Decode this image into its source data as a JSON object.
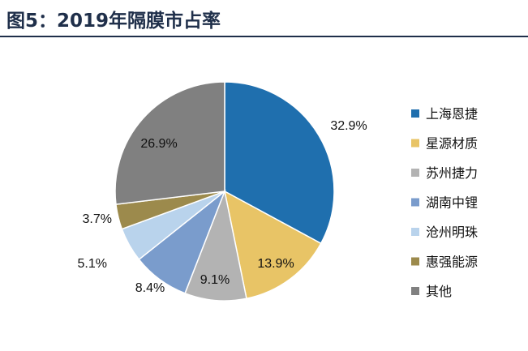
{
  "header": {
    "title": "图5：2019年隔膜市占率"
  },
  "chart_data": {
    "type": "pie",
    "title": "图5：2019年隔膜市占率",
    "legend_position": "right",
    "slices": [
      {
        "label": "上海恩捷",
        "value": 32.9,
        "value_label": "32.9%",
        "color": "#1f6fae"
      },
      {
        "label": "星源材质",
        "value": 13.9,
        "value_label": "13.9%",
        "color": "#e8c466"
      },
      {
        "label": "苏州捷力",
        "value": 9.1,
        "value_label": "9.1%",
        "color": "#b3b3b3"
      },
      {
        "label": "湖南中锂",
        "value": 8.4,
        "value_label": "8.4%",
        "color": "#7a9ccc"
      },
      {
        "label": "沧州明珠",
        "value": 5.1,
        "value_label": "5.1%",
        "color": "#b9d3ec"
      },
      {
        "label": "惠强能源",
        "value": 3.7,
        "value_label": "3.7%",
        "color": "#9c8a4c"
      },
      {
        "label": "其他",
        "value": 26.9,
        "value_label": "26.9%",
        "color": "#808080"
      }
    ]
  }
}
